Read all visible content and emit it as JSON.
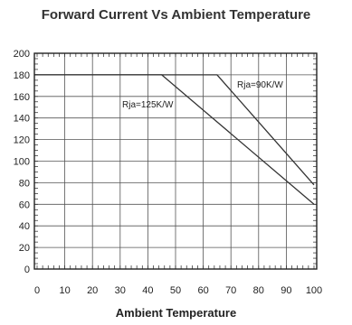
{
  "chart_data": {
    "type": "line",
    "title": "Forward Current Vs Ambient Temperature",
    "xlabel": "Ambient Temperature",
    "ylabel": "",
    "xlim": [
      0,
      100
    ],
    "ylim": [
      0,
      200
    ],
    "xticks": [
      0,
      10,
      20,
      30,
      40,
      50,
      60,
      70,
      80,
      90,
      100
    ],
    "yticks": [
      0,
      20,
      40,
      60,
      80,
      100,
      120,
      140,
      160,
      180,
      200
    ],
    "grid": true,
    "annotations": [
      "Rja=90K/W",
      "Rja=125K/W"
    ],
    "series": [
      {
        "name": "Rja=125K/W",
        "x": [
          -3,
          45,
          100
        ],
        "y": [
          180,
          180,
          60
        ]
      },
      {
        "name": "Rja=90K/W",
        "x": [
          -3,
          65,
          100
        ],
        "y": [
          180,
          180,
          78
        ]
      }
    ]
  }
}
